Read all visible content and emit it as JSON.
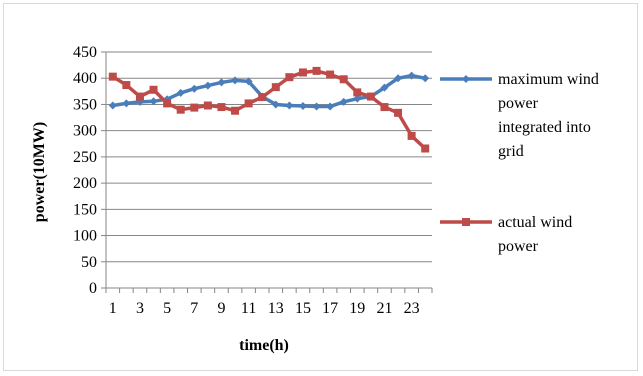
{
  "chart_data": {
    "type": "line",
    "title": "",
    "xlabel": "time(h)",
    "ylabel": "power(10MW)",
    "x": [
      1,
      2,
      3,
      4,
      5,
      6,
      7,
      8,
      9,
      10,
      11,
      12,
      13,
      14,
      15,
      16,
      17,
      18,
      19,
      20,
      21,
      22,
      23,
      24
    ],
    "x_tick_labels": [
      "1",
      "3",
      "5",
      "7",
      "9",
      "11",
      "13",
      "15",
      "17",
      "19",
      "21",
      "23"
    ],
    "y_ticks": [
      0,
      50,
      100,
      150,
      200,
      250,
      300,
      350,
      400,
      450
    ],
    "ylim": [
      0,
      450
    ],
    "grid": "horizontal",
    "legend_position": "right",
    "series": [
      {
        "name": "maximum wind power integrated into grid",
        "name_lines": [
          "maximum wind",
          "power",
          "integrated into",
          "grid"
        ],
        "color": "#4a7ebb",
        "marker": "diamond",
        "values": [
          348,
          352,
          355,
          356,
          360,
          372,
          380,
          386,
          392,
          396,
          394,
          365,
          350,
          348,
          347,
          346,
          346,
          355,
          361,
          365,
          382,
          400,
          405,
          400
        ]
      },
      {
        "name": "actual wind power",
        "name_lines": [
          "actual wind",
          "power"
        ],
        "color": "#be4b48",
        "marker": "square",
        "values": [
          403,
          387,
          365,
          378,
          352,
          340,
          344,
          348,
          345,
          338,
          352,
          364,
          383,
          402,
          411,
          414,
          407,
          398,
          373,
          365,
          345,
          334,
          290,
          266
        ]
      }
    ]
  }
}
